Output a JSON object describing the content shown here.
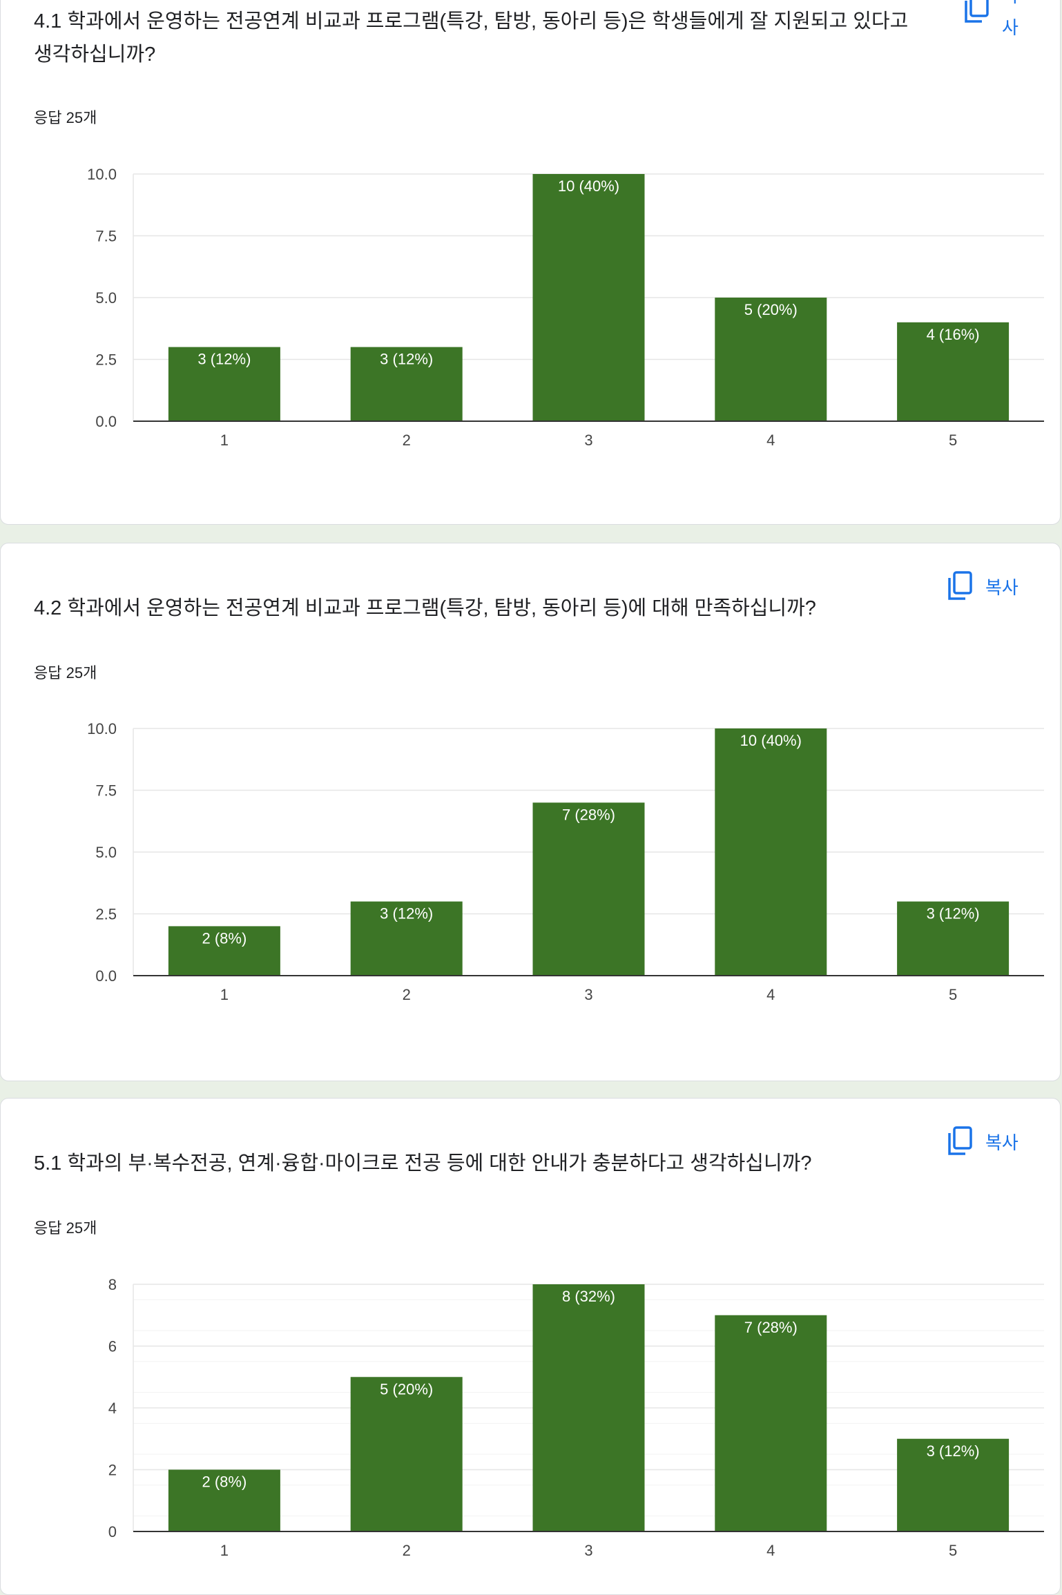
{
  "colors": {
    "bar": "#3c7526",
    "accent": "#1a73e8",
    "grid": "#e6e6e6",
    "axis": "#333333"
  },
  "cards": [
    {
      "title": "4.1 학과에서 운영하는 전공연계 비교과 프로그램(특강, 탐방, 동아리 등)은 학생들에게 잘 지원되고 있다고 생각하십니까?",
      "responses": "응답 25개",
      "copy_label": "복사",
      "copy_icon": "copy-icon"
    },
    {
      "title": "4.2 학과에서 운영하는 전공연계 비교과 프로그램(특강, 탐방, 동아리 등)에 대해 만족하십니까?",
      "responses": "응답 25개",
      "copy_label": "복사",
      "copy_icon": "copy-icon"
    },
    {
      "title": "5.1 학과의 부·복수전공, 연계·융합·마이크로 전공 등에 대한 안내가 충분하다고 생각하십니까?",
      "responses": "응답 25개",
      "copy_label": "복사",
      "copy_icon": "copy-icon"
    }
  ],
  "chart_data": [
    {
      "type": "bar",
      "categories": [
        "1",
        "2",
        "3",
        "4",
        "5"
      ],
      "values": [
        3,
        3,
        10,
        5,
        4
      ],
      "data_labels": [
        "3 (12%)",
        "3 (12%)",
        "10 (40%)",
        "5 (20%)",
        "4 (16%)"
      ],
      "yticks": [
        "0.0",
        "2.5",
        "5.0",
        "7.5",
        "10.0"
      ],
      "ylim": [
        0,
        10
      ],
      "grid": true
    },
    {
      "type": "bar",
      "categories": [
        "1",
        "2",
        "3",
        "4",
        "5"
      ],
      "values": [
        2,
        3,
        7,
        10,
        3
      ],
      "data_labels": [
        "2 (8%)",
        "3 (12%)",
        "7 (28%)",
        "10 (40%)",
        "3 (12%)"
      ],
      "yticks": [
        "0.0",
        "2.5",
        "5.0",
        "7.5",
        "10.0"
      ],
      "ylim": [
        0,
        10
      ],
      "grid": true
    },
    {
      "type": "bar",
      "categories": [
        "1",
        "2",
        "3",
        "4",
        "5"
      ],
      "values": [
        2,
        5,
        8,
        7,
        3
      ],
      "data_labels": [
        "2 (8%)",
        "5 (20%)",
        "8 (32%)",
        "7 (28%)",
        "3 (12%)"
      ],
      "yticks": [
        "0",
        "2",
        "4",
        "6",
        "8"
      ],
      "ylim": [
        0,
        8
      ],
      "grid": true
    }
  ]
}
